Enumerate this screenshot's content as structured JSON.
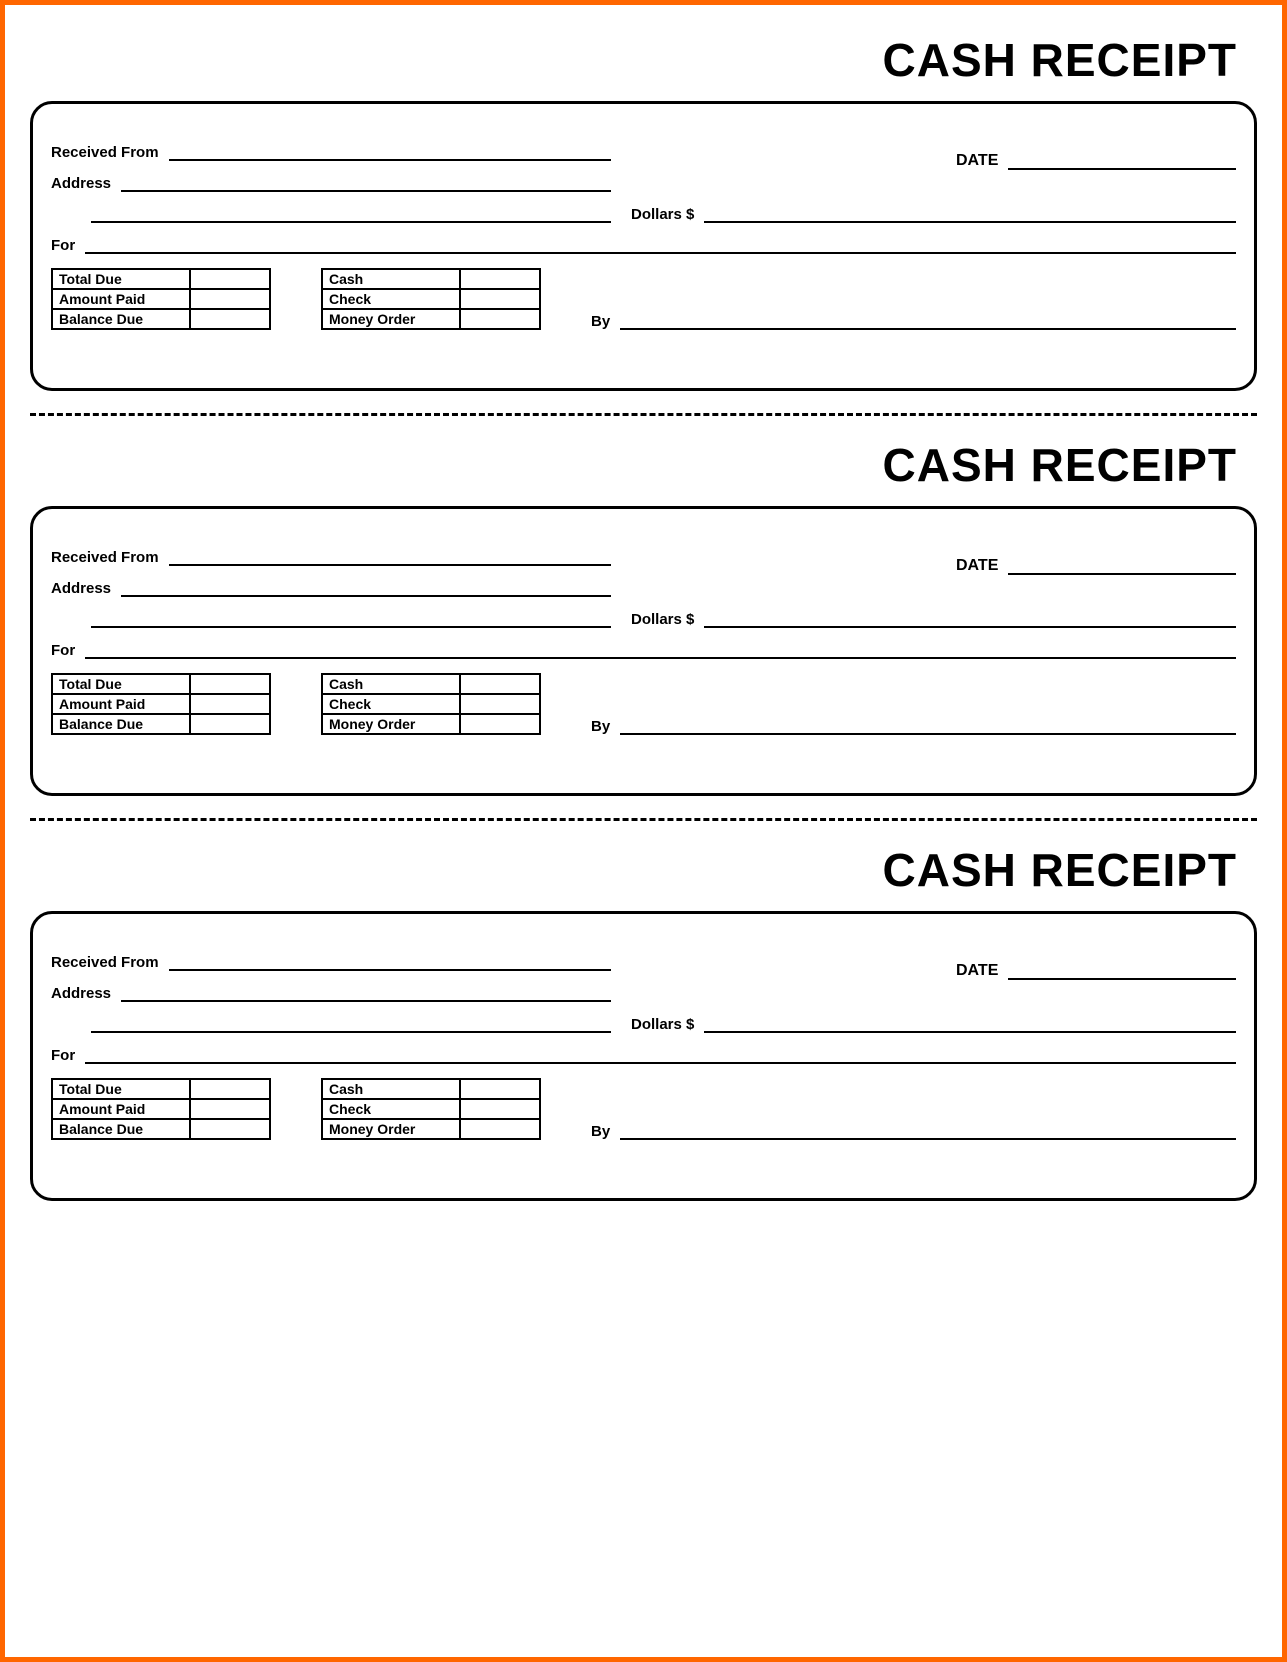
{
  "border_color": "#ff6600",
  "title": "CASH RECEIPT",
  "labels": {
    "received_from": "Received From",
    "date": "DATE",
    "address": "Address",
    "dollars": "Dollars $",
    "for": "For",
    "by": "By"
  },
  "amount_table": {
    "rows": [
      "Total Due",
      "Amount Paid",
      "Balance Due"
    ]
  },
  "payment_table": {
    "rows": [
      "Cash",
      "Check",
      "Money Order"
    ]
  },
  "receipt_count": 3
}
